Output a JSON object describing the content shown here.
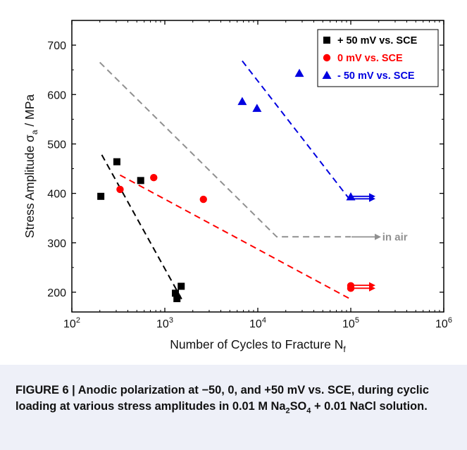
{
  "chart_data": {
    "type": "scatter",
    "xlabel": "Number of Cycles to Fracture N",
    "xlabel_sub": "f",
    "ylabel": "Stress Amplitude σ",
    "ylabel_sub": "a",
    "ylabel_unit": " / MPa",
    "xscale": "log",
    "xlim": [
      100,
      1000000
    ],
    "ylim": [
      160,
      750
    ],
    "x_ticks": [
      {
        "base": "10",
        "exp": "2",
        "value": 100
      },
      {
        "base": "10",
        "exp": "3",
        "value": 1000
      },
      {
        "base": "10",
        "exp": "4",
        "value": 10000
      },
      {
        "base": "10",
        "exp": "5",
        "value": 100000
      },
      {
        "base": "10",
        "exp": "6",
        "value": 1000000
      }
    ],
    "y_ticks": [
      "200",
      "300",
      "400",
      "500",
      "600",
      "700"
    ],
    "legend_position": "top-right",
    "series": [
      {
        "name": "+ 50 mV vs. SCE",
        "color": "#000000",
        "marker": "square",
        "points": [
          [
            205,
            394
          ],
          [
            305,
            464
          ],
          [
            550,
            426
          ],
          [
            1300,
            198
          ],
          [
            1350,
            187
          ],
          [
            1500,
            212
          ]
        ],
        "fit": [
          [
            210,
            478
          ],
          [
            1560,
            182
          ]
        ]
      },
      {
        "name": "0 mV vs. SCE",
        "color": "#ff0000",
        "marker": "circle",
        "points": [
          [
            330,
            408
          ],
          [
            760,
            432
          ],
          [
            2600,
            388
          ],
          [
            100000,
            213
          ],
          [
            100000,
            208
          ]
        ],
        "fit": [
          [
            330,
            437
          ],
          [
            95000,
            188
          ]
        ],
        "runout_arrows": [
          [
            100000,
            214
          ],
          [
            100000,
            208
          ]
        ]
      },
      {
        "name": "- 50 mV vs. SCE",
        "color": "#0000e0",
        "marker": "triangle",
        "points": [
          [
            6800,
            586
          ],
          [
            9800,
            572
          ],
          [
            28000,
            643
          ],
          [
            100000,
            393
          ]
        ],
        "fit": [
          [
            6800,
            668
          ],
          [
            98000,
            387
          ]
        ],
        "runout_arrows": [
          [
            100000,
            394
          ],
          [
            100000,
            389
          ]
        ]
      },
      {
        "name": "in air",
        "color": "#909090",
        "marker": "none",
        "points": [],
        "fit": [
          [
            200,
            665
          ],
          [
            16000,
            312
          ],
          [
            100000,
            312
          ]
        ],
        "runout_arrows": [
          [
            100000,
            312
          ]
        ]
      }
    ],
    "annotations": [
      {
        "text": "in air",
        "x": 230000,
        "y": 312,
        "color": "#909090"
      }
    ]
  },
  "caption": {
    "lead": "FIGURE 6",
    "sep": " | ",
    "text_a": "Anodic polarization at −50, 0, and +50 mV vs. SCE, during cyclic loading at various stress amplitudes in 0.01 M Na",
    "sub1": "2",
    "text_b": "SO",
    "sub2": "4",
    "text_c": " + 0.01 NaCl solution",
    "end": "."
  }
}
